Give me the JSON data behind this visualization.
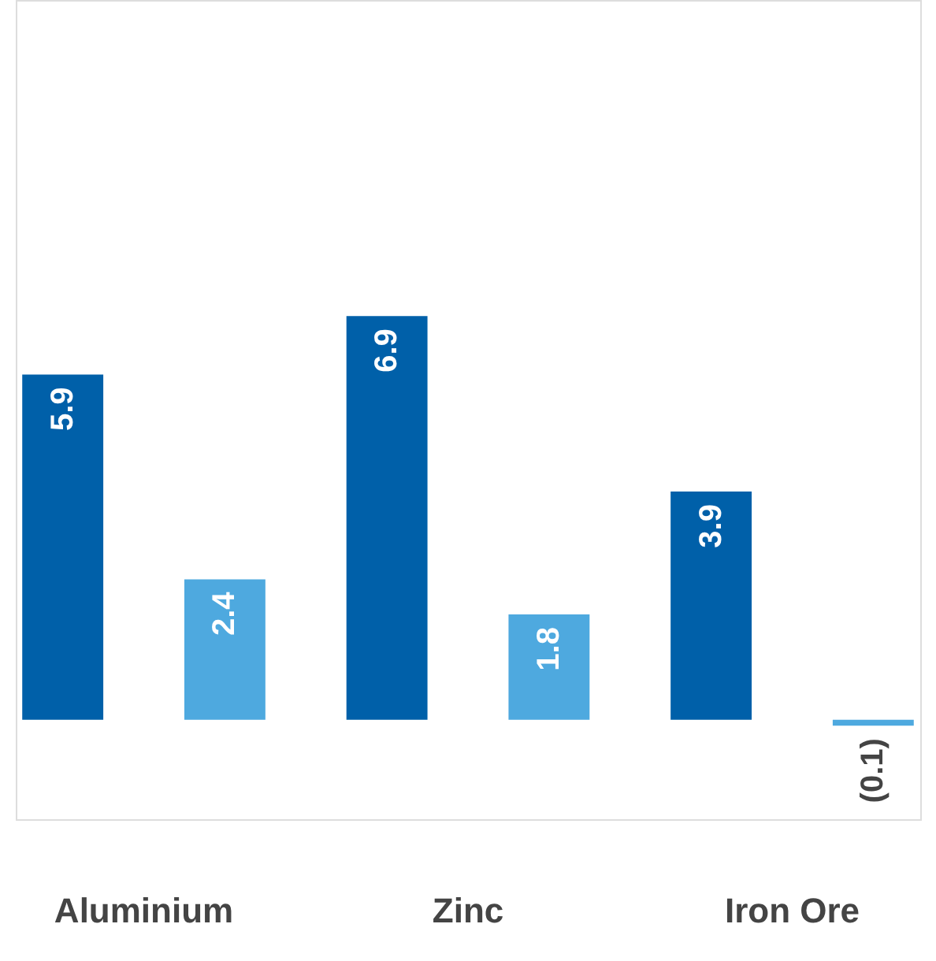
{
  "chart_data": {
    "type": "bar",
    "categories": [
      "Aluminium",
      "Zinc",
      "Iron Ore"
    ],
    "series": [
      {
        "color": "#0060a9",
        "values": [
          5.9,
          6.9,
          3.9
        ],
        "value_labels": [
          "5.9",
          "6.9",
          "3.9"
        ]
      },
      {
        "color": "#4ea9df",
        "values": [
          2.4,
          1.8,
          -0.1
        ],
        "value_labels": [
          "2.4",
          "1.8",
          "(0.1)"
        ]
      }
    ],
    "ylim": [
      -1.7,
      12.3
    ],
    "tick_labels": "x",
    "grid": false,
    "legend": false
  }
}
